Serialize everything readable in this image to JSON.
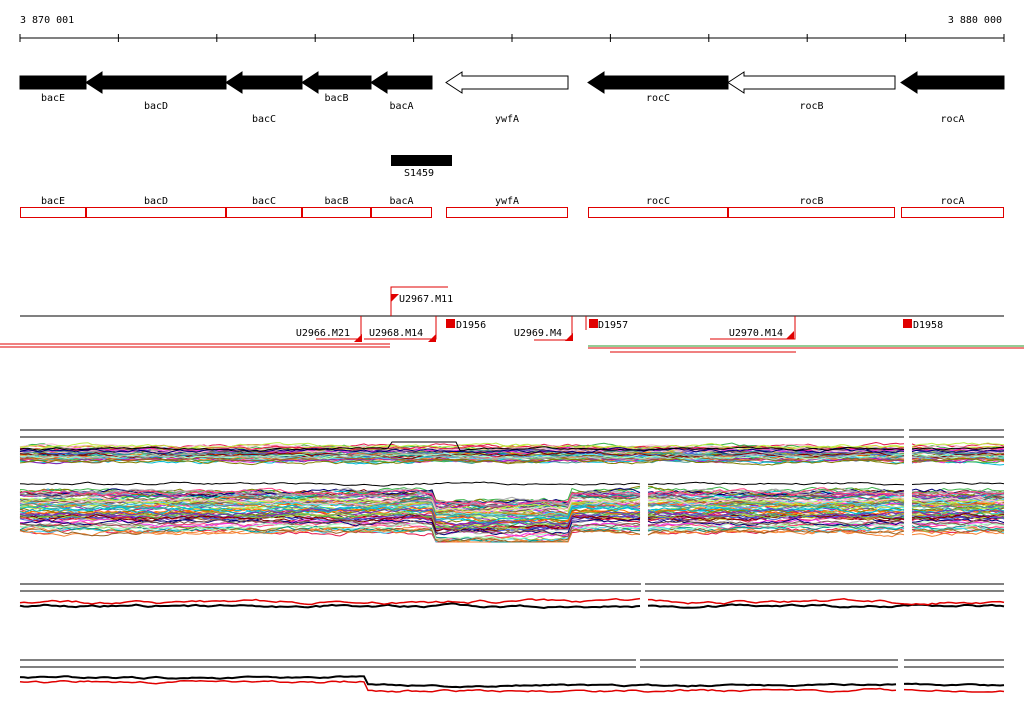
{
  "coords": {
    "start": "3 870 001",
    "end": "3 880 000"
  },
  "genes": [
    {
      "name": "bacE",
      "strand": "minus",
      "filled": true
    },
    {
      "name": "bacD",
      "strand": "minus",
      "filled": true
    },
    {
      "name": "bacC",
      "strand": "minus",
      "filled": true
    },
    {
      "name": "bacB",
      "strand": "minus",
      "filled": true
    },
    {
      "name": "bacA",
      "strand": "minus",
      "filled": true
    },
    {
      "name": "ywfA",
      "strand": "minus",
      "filled": false
    },
    {
      "name": "rocC",
      "strand": "minus",
      "filled": true
    },
    {
      "name": "rocB",
      "strand": "minus",
      "filled": false
    },
    {
      "name": "rocA",
      "strand": "minus",
      "filled": true
    }
  ],
  "feature": {
    "name": "S1459"
  },
  "gene_boxes": [
    "bacE",
    "bacD",
    "bacC",
    "bacB",
    "bacA",
    "ywfA",
    "rocC",
    "rocB",
    "rocA"
  ],
  "segments": [
    {
      "name": "U2967.M11"
    },
    {
      "name": "U2966.M21"
    },
    {
      "name": "U2968.M14"
    },
    {
      "name": "D1956"
    },
    {
      "name": "U2969.M4"
    },
    {
      "name": "D1957"
    },
    {
      "name": "U2970.M14"
    },
    {
      "name": "D1958"
    }
  ],
  "colors": {
    "gene_fill": "#000000",
    "box_stroke": "#e00000",
    "marker": "#e00000",
    "profile_a": "#000000",
    "profile_b": "#e00000"
  }
}
